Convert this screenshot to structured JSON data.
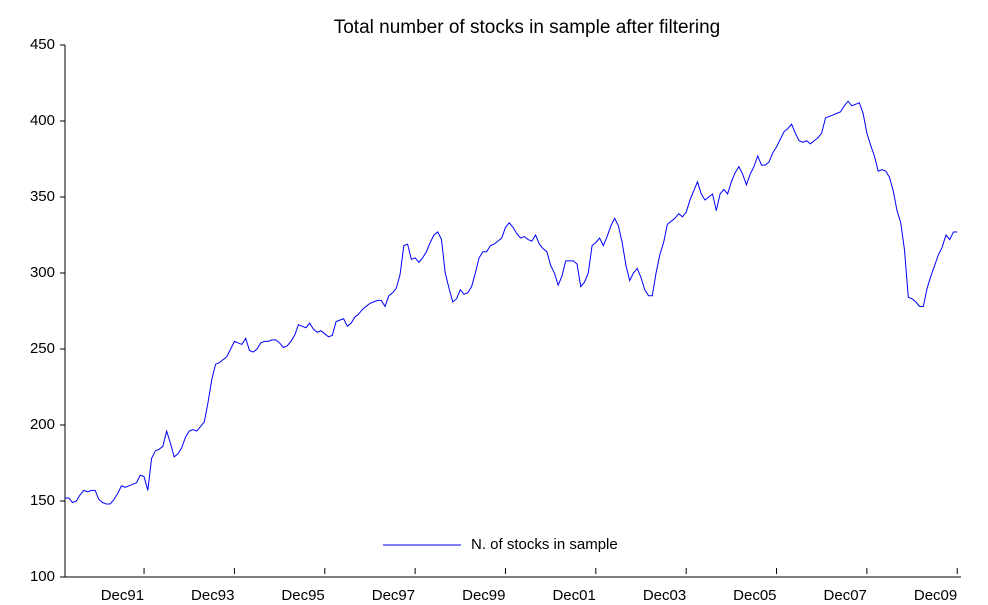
{
  "chart_data": {
    "type": "line",
    "title": "Total number of stocks in sample after filtering",
    "x": [
      "1990-03",
      "1990-04",
      "1990-05",
      "1990-06",
      "1990-07",
      "1990-08",
      "1990-09",
      "1990-10",
      "1990-11",
      "1990-12",
      "1991-01",
      "1991-02",
      "1991-03",
      "1991-04",
      "1991-05",
      "1991-06",
      "1991-07",
      "1991-08",
      "1991-09",
      "1991-10",
      "1991-11",
      "1991-12",
      "1992-01",
      "1992-02",
      "1992-03",
      "1992-04",
      "1992-05",
      "1992-06",
      "1992-07",
      "1992-08",
      "1992-09",
      "1992-10",
      "1992-11",
      "1992-12",
      "1993-01",
      "1993-02",
      "1993-03",
      "1993-04",
      "1993-05",
      "1993-06",
      "1993-07",
      "1993-08",
      "1993-09",
      "1993-10",
      "1993-11",
      "1993-12",
      "1994-01",
      "1994-02",
      "1994-03",
      "1994-04",
      "1994-05",
      "1994-06",
      "1994-07",
      "1994-08",
      "1994-09",
      "1994-10",
      "1994-11",
      "1994-12",
      "1995-01",
      "1995-02",
      "1995-03",
      "1995-04",
      "1995-05",
      "1995-06",
      "1995-07",
      "1995-08",
      "1995-09",
      "1995-10",
      "1995-11",
      "1995-12",
      "1996-01",
      "1996-02",
      "1996-03",
      "1996-04",
      "1996-05",
      "1996-06",
      "1996-07",
      "1996-08",
      "1996-09",
      "1996-10",
      "1996-11",
      "1996-12",
      "1997-01",
      "1997-02",
      "1997-03",
      "1997-04",
      "1997-05",
      "1997-06",
      "1997-07",
      "1997-08",
      "1997-09",
      "1997-10",
      "1997-11",
      "1997-12",
      "1998-01",
      "1998-02",
      "1998-03",
      "1998-04",
      "1998-05",
      "1998-06",
      "1998-07",
      "1998-08",
      "1998-09",
      "1998-10",
      "1998-11",
      "1998-12",
      "1999-01",
      "1999-02",
      "1999-03",
      "1999-04",
      "1999-05",
      "1999-06",
      "1999-07",
      "1999-08",
      "1999-09",
      "1999-10",
      "1999-11",
      "1999-12",
      "2000-01",
      "2000-02",
      "2000-03",
      "2000-04",
      "2000-05",
      "2000-06",
      "2000-07",
      "2000-08",
      "2000-09",
      "2000-10",
      "2000-11",
      "2000-12",
      "2001-01",
      "2001-02",
      "2001-03",
      "2001-04",
      "2001-05",
      "2001-06",
      "2001-07",
      "2001-08",
      "2001-09",
      "2001-10",
      "2001-11",
      "2001-12",
      "2002-01",
      "2002-02",
      "2002-03",
      "2002-04",
      "2002-05",
      "2002-06",
      "2002-07",
      "2002-08",
      "2002-09",
      "2002-10",
      "2002-11",
      "2002-12",
      "2003-01",
      "2003-02",
      "2003-03",
      "2003-04",
      "2003-05",
      "2003-06",
      "2003-07",
      "2003-08",
      "2003-09",
      "2003-10",
      "2003-11",
      "2003-12",
      "2004-01",
      "2004-02",
      "2004-03",
      "2004-04",
      "2004-05",
      "2004-06",
      "2004-07",
      "2004-08",
      "2004-09",
      "2004-10",
      "2004-11",
      "2004-12",
      "2005-01",
      "2005-02",
      "2005-03",
      "2005-04",
      "2005-05",
      "2005-06",
      "2005-07",
      "2005-08",
      "2005-09",
      "2005-10",
      "2005-11",
      "2005-12",
      "2006-01",
      "2006-02",
      "2006-03",
      "2006-04",
      "2006-05",
      "2006-06",
      "2006-07",
      "2006-08",
      "2006-09",
      "2006-10",
      "2006-11",
      "2006-12",
      "2007-01",
      "2007-02",
      "2007-03",
      "2007-04",
      "2007-05",
      "2007-06",
      "2007-07",
      "2007-08",
      "2007-09",
      "2007-10",
      "2007-11",
      "2007-12",
      "2008-01",
      "2008-02",
      "2008-03",
      "2008-04",
      "2008-05",
      "2008-06",
      "2008-07",
      "2008-08",
      "2008-09",
      "2008-10",
      "2008-11",
      "2008-12",
      "2009-01",
      "2009-02",
      "2009-03",
      "2009-04",
      "2009-05",
      "2009-06",
      "2009-07",
      "2009-08",
      "2009-09",
      "2009-10",
      "2009-11",
      "2009-12"
    ],
    "series": [
      {
        "name": "N. of stocks in sample",
        "color": "#0000ff",
        "values": [
          152,
          152,
          149,
          150,
          154,
          157,
          156,
          157,
          157,
          151,
          149,
          148,
          148,
          151,
          155,
          160,
          159,
          160,
          161,
          162,
          167,
          166,
          157,
          178,
          183,
          184,
          186,
          196,
          188,
          179,
          181,
          185,
          192,
          196,
          197,
          196,
          199,
          202,
          215,
          230,
          240,
          241,
          243,
          245,
          250,
          255,
          254,
          253,
          257,
          249,
          248,
          250,
          254,
          255,
          255,
          256,
          256,
          254,
          251,
          252,
          255,
          259,
          266,
          265,
          264,
          267,
          263,
          261,
          262,
          260,
          258,
          259,
          268,
          269,
          270,
          265,
          267,
          271,
          273,
          276,
          278,
          280,
          281,
          282,
          282,
          278,
          285,
          287,
          290,
          299,
          318,
          319,
          309,
          310,
          307,
          310,
          314,
          320,
          325,
          327,
          322,
          300,
          290,
          281,
          283,
          289,
          286,
          287,
          291,
          300,
          310,
          314,
          314,
          318,
          319,
          321,
          323,
          330,
          333,
          330,
          326,
          323,
          324,
          322,
          321,
          325,
          319,
          316,
          314,
          305,
          300,
          292,
          298,
          308,
          308,
          308,
          306,
          291,
          294,
          300,
          318,
          320,
          323,
          318,
          324,
          331,
          336,
          331,
          320,
          305,
          295,
          300,
          303,
          297,
          289,
          285,
          285,
          300,
          312,
          320,
          332,
          334,
          336,
          339,
          337,
          340,
          348,
          354,
          360,
          352,
          348,
          350,
          352,
          341,
          352,
          355,
          352,
          360,
          366,
          370,
          365,
          358,
          365,
          370,
          377,
          371,
          371,
          373,
          379,
          383,
          388,
          393,
          395,
          398,
          392,
          387,
          386,
          387,
          385,
          387,
          389,
          392,
          402,
          403,
          404,
          405,
          406,
          410,
          413,
          410,
          411,
          412,
          405,
          392,
          384,
          377,
          367,
          368,
          367,
          363,
          354,
          341,
          333,
          315,
          284,
          283,
          281,
          278,
          278,
          290,
          298,
          305,
          312,
          317,
          325,
          322,
          327,
          327
        ]
      }
    ],
    "xlim": [
      "1990-03",
      "2010-01"
    ],
    "xticks": [
      {
        "value": "1991-12",
        "label": "Dec91"
      },
      {
        "value": "1993-12",
        "label": "Dec93"
      },
      {
        "value": "1995-12",
        "label": "Dec95"
      },
      {
        "value": "1997-12",
        "label": "Dec97"
      },
      {
        "value": "1999-12",
        "label": "Dec99"
      },
      {
        "value": "2001-12",
        "label": "Dec01"
      },
      {
        "value": "2003-12",
        "label": "Dec03"
      },
      {
        "value": "2005-12",
        "label": "Dec05"
      },
      {
        "value": "2007-12",
        "label": "Dec07"
      },
      {
        "value": "2009-12",
        "label": "Dec09"
      }
    ],
    "ylim": [
      100,
      450
    ],
    "yticks": [
      100,
      150,
      200,
      250,
      300,
      350,
      400,
      450
    ],
    "legend": "south"
  }
}
